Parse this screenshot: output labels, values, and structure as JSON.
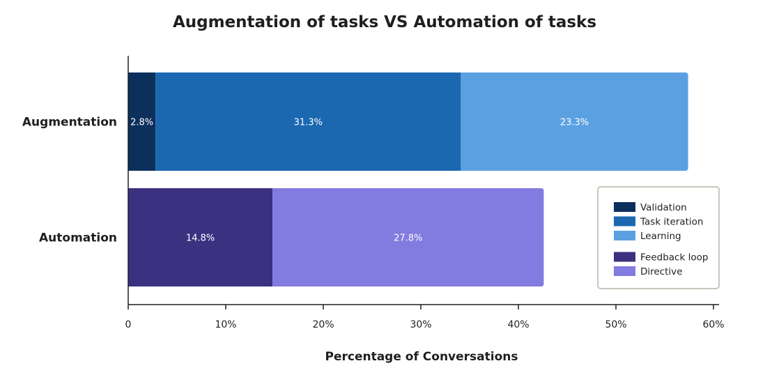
{
  "chart_data": {
    "type": "bar",
    "orientation": "horizontal",
    "stacked": true,
    "title": "Augmentation of tasks VS Automation of tasks",
    "xlabel": "Percentage of Conversations",
    "ylabel": "",
    "xlim": [
      0,
      60
    ],
    "x_ticks": [
      0,
      10,
      20,
      30,
      40,
      50,
      60
    ],
    "x_tick_labels": [
      "0",
      "10%",
      "20%",
      "30%",
      "40%",
      "50%",
      "60%"
    ],
    "grid": false,
    "legend_position": "bottom-right",
    "categories": [
      "Augmentation",
      "Automation"
    ],
    "series": [
      {
        "name": "Validation",
        "category": "Augmentation",
        "value": 2.8,
        "label": "2.8%",
        "color": "#0c2f5c"
      },
      {
        "name": "Task iteration",
        "category": "Augmentation",
        "value": 31.3,
        "label": "31.3%",
        "color": "#1b68b1"
      },
      {
        "name": "Learning",
        "category": "Augmentation",
        "value": 23.3,
        "label": "23.3%",
        "color": "#5ba1e1"
      },
      {
        "name": "Feedback loop",
        "category": "Automation",
        "value": 14.8,
        "label": "14.8%",
        "color": "#3b3180"
      },
      {
        "name": "Directive",
        "category": "Automation",
        "value": 27.8,
        "label": "27.8%",
        "color": "#827be0"
      }
    ],
    "legend_groups": [
      [
        "Validation",
        "Task iteration",
        "Learning"
      ],
      [
        "Feedback loop",
        "Directive"
      ]
    ]
  }
}
